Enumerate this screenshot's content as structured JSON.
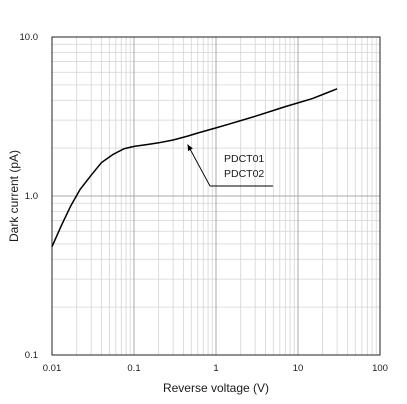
{
  "chart_data": {
    "type": "line",
    "xscale": "log",
    "yscale": "log",
    "xlim": [
      0.01,
      100
    ],
    "ylim": [
      0.1,
      10
    ],
    "grid": true,
    "xlabel": "Reverse voltage (V)",
    "ylabel": "Dark current (pA)",
    "x_tick_labels": [
      "0.01",
      "0.1",
      "1",
      "10",
      "100"
    ],
    "y_tick_labels": [
      "0.1",
      "1.0",
      "10.0"
    ],
    "annotation": {
      "lines": [
        "PDCT01",
        "PDCT02"
      ],
      "points_to": {
        "x": 0.45,
        "y": 2.3
      }
    },
    "series": [
      {
        "x": [
          0.01,
          0.013,
          0.017,
          0.022,
          0.03,
          0.04,
          0.055,
          0.075,
          0.1,
          0.15,
          0.2,
          0.3,
          0.45,
          0.6,
          1,
          1.5,
          2,
          3,
          5,
          7,
          10,
          15,
          20,
          30
        ],
        "y": [
          0.48,
          0.65,
          0.87,
          1.1,
          1.35,
          1.62,
          1.82,
          1.98,
          2.05,
          2.11,
          2.16,
          2.25,
          2.38,
          2.49,
          2.68,
          2.85,
          2.98,
          3.17,
          3.45,
          3.65,
          3.85,
          4.1,
          4.35,
          4.72
        ]
      }
    ]
  }
}
